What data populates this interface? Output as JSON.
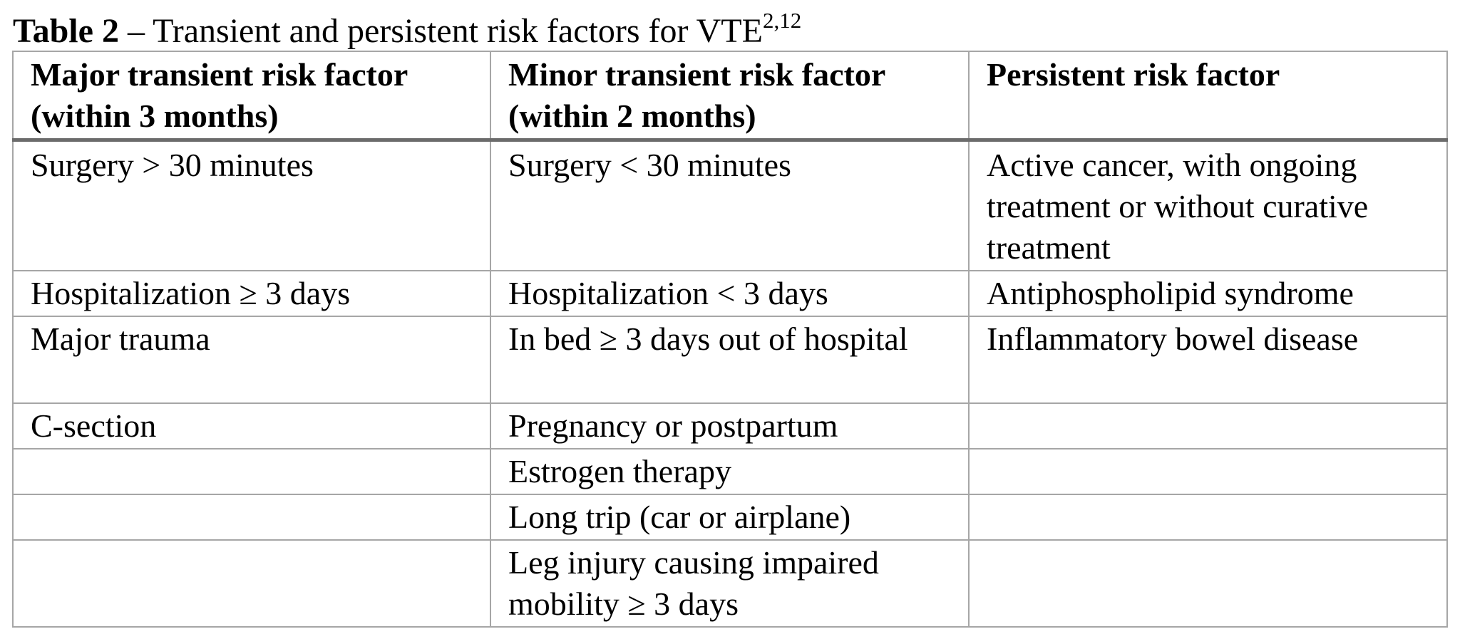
{
  "caption": {
    "label": "Table 2",
    "text": " – Transient and persistent risk factors for VTE",
    "superscript": "2,12"
  },
  "table": {
    "headers": [
      "Major transient risk factor (within 3 months)",
      "Minor transient risk factor (within 2 months)",
      "Persistent risk factor"
    ],
    "rows": [
      [
        "Surgery > 30 minutes",
        "Surgery < 30 minutes",
        "Active cancer, with ongoing treatment or without curative treatment"
      ],
      [
        "Hospitalization ≥ 3 days",
        "Hospitalization < 3 days",
        "Antiphospholipid syndrome"
      ],
      [
        "Major trauma",
        "In bed ≥ 3 days out of hospital",
        "Inflammatory bowel disease"
      ],
      [
        "C-section",
        "Pregnancy or postpartum",
        ""
      ],
      [
        "",
        "Estrogen therapy",
        ""
      ],
      [
        "",
        "Long trip (car or airplane)",
        ""
      ],
      [
        "",
        "Leg injury causing impaired mobility ≥ 3 days",
        ""
      ]
    ]
  },
  "colors": {
    "text": "#000000",
    "border": "#a6a6a6",
    "header_rule": "#6b6b6b",
    "background": "#ffffff"
  }
}
